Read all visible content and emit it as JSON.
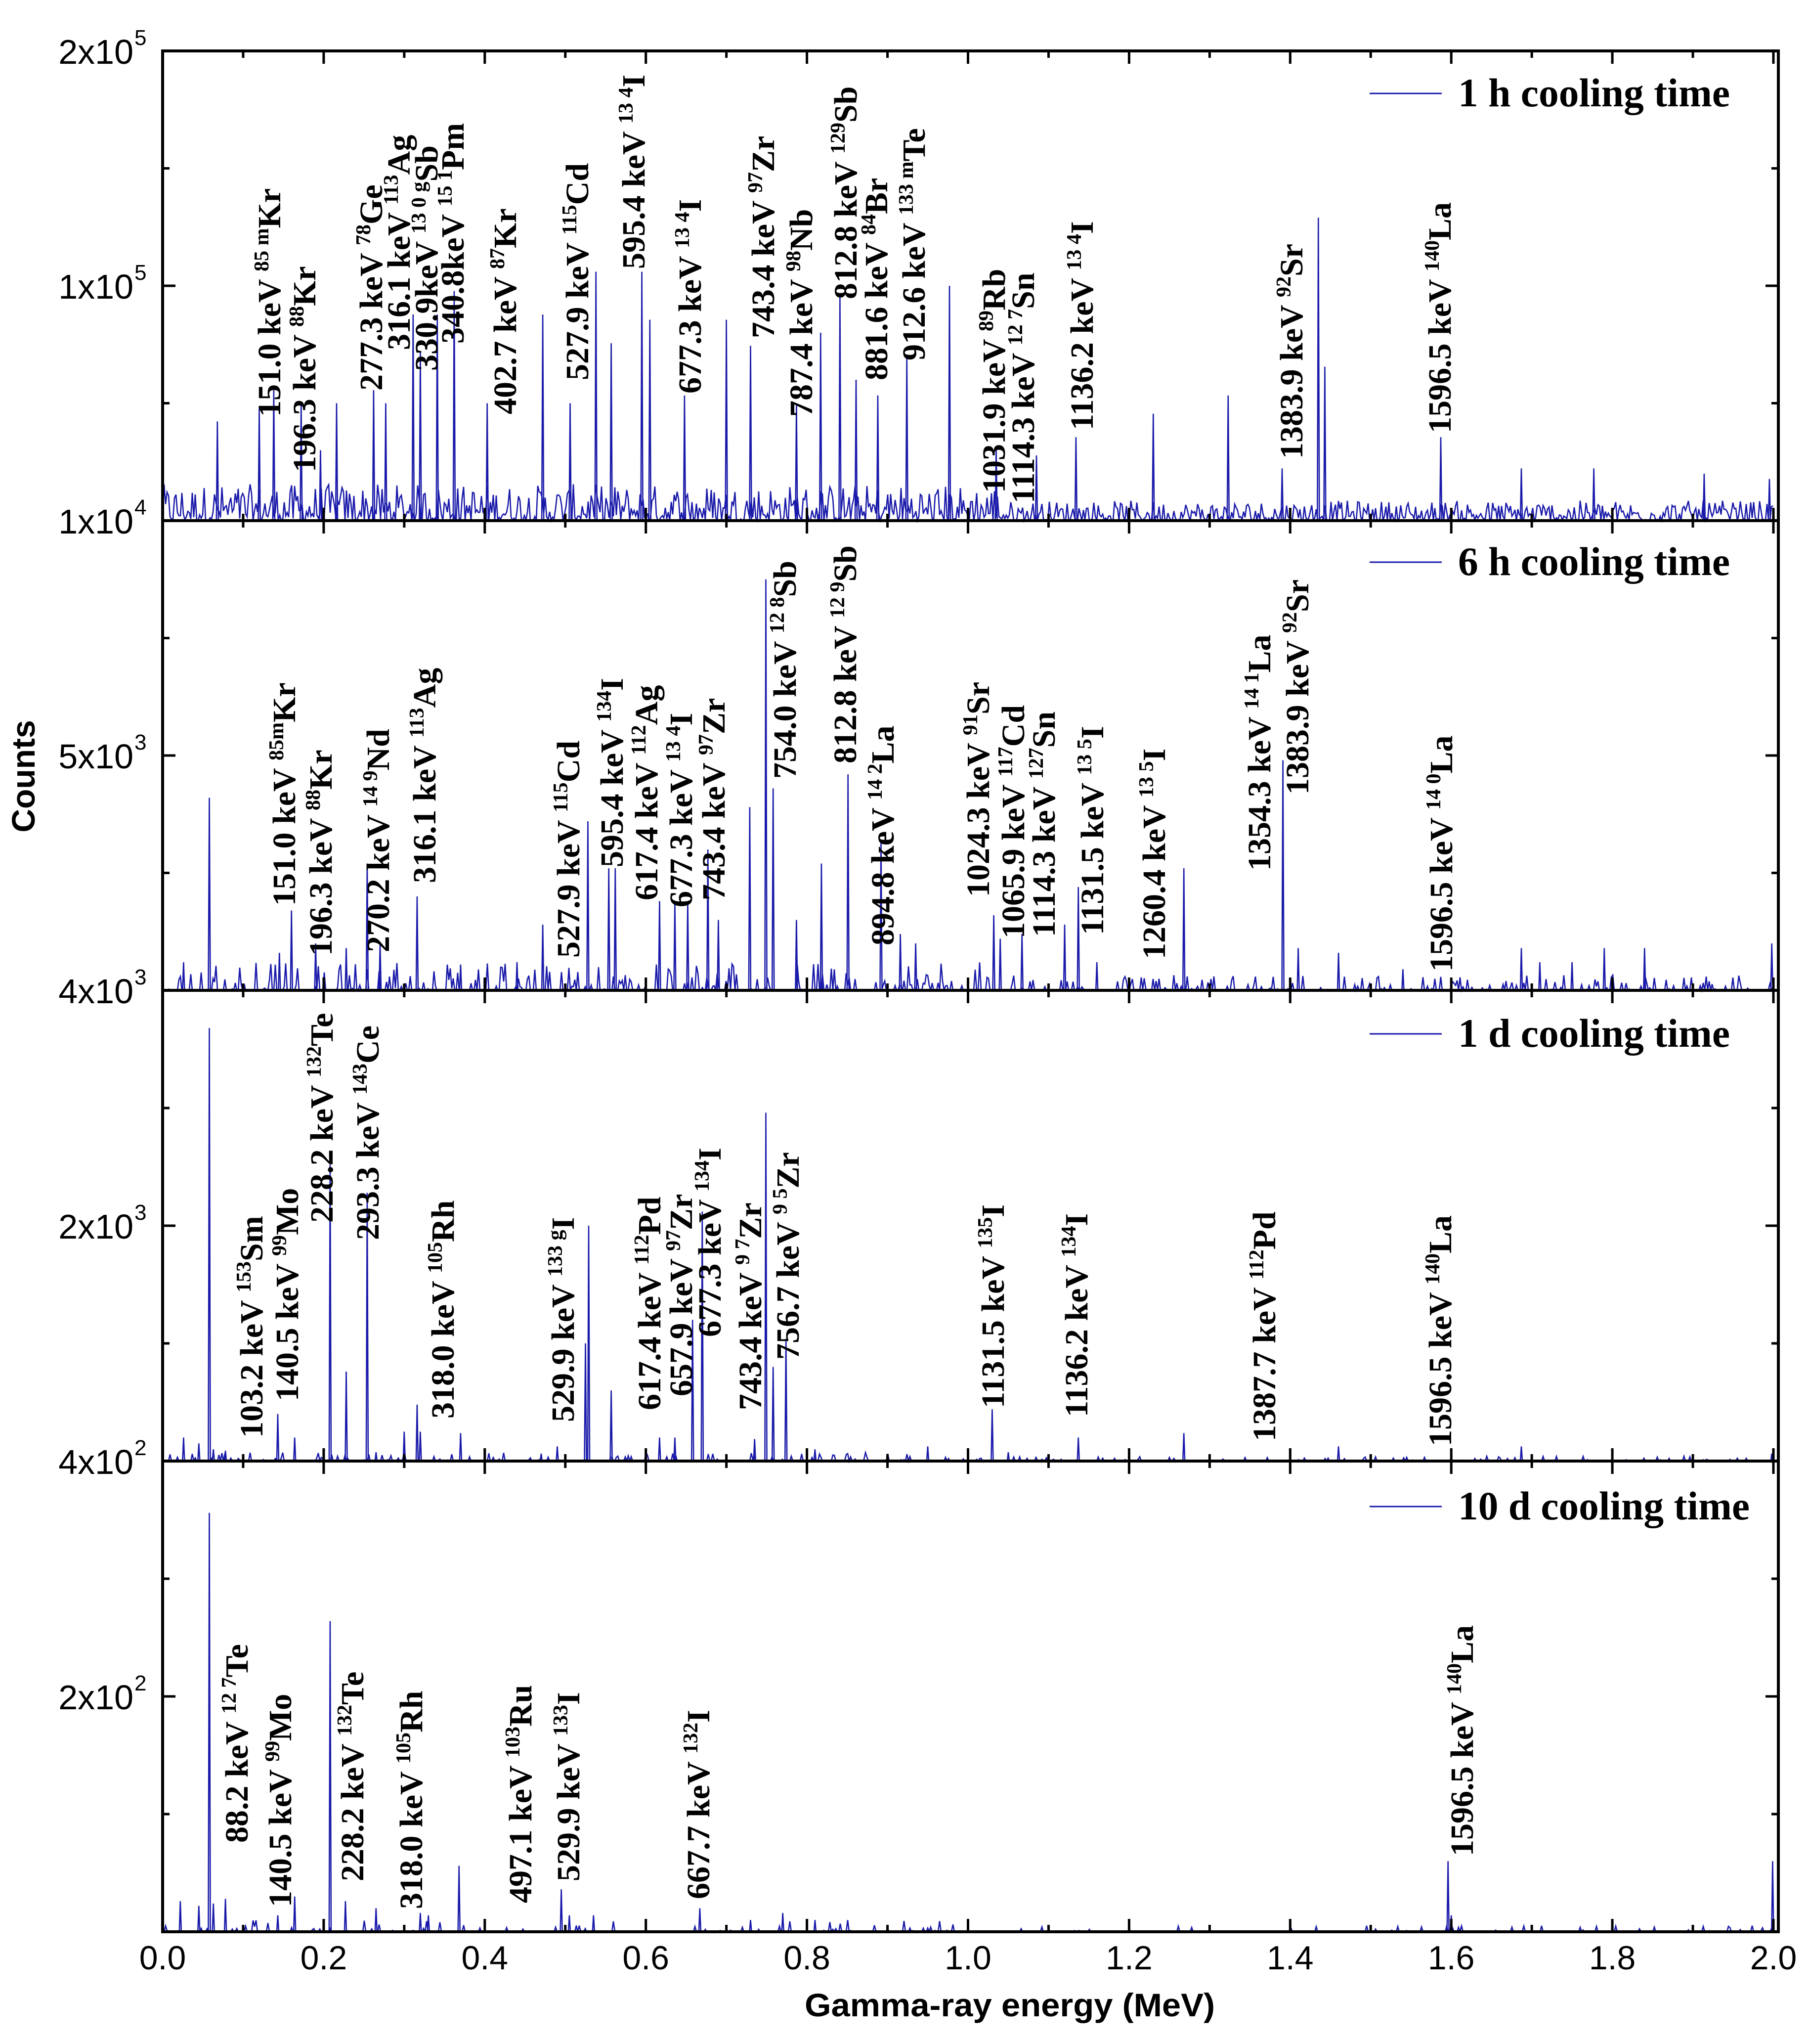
{
  "chart_data": {
    "type": "line",
    "title": "",
    "xlabel": "Gamma-ray energy (MeV)",
    "ylabel": "Counts",
    "xlim": [
      0.0,
      2.0
    ],
    "x_ticks": [
      "0.0",
      "0.2",
      "0.4",
      "0.6",
      "0.8",
      "1.0",
      "1.2",
      "1.4",
      "1.6",
      "1.8",
      "2.0"
    ],
    "x_tick_values": [
      0.0,
      0.2,
      0.4,
      0.6,
      0.8,
      1.0,
      1.2,
      1.4,
      1.6,
      1.8,
      2.0
    ],
    "grid": false,
    "legend_placement": "top-right",
    "series_color": "#1a1aaa",
    "panels": [
      {
        "name": "1 h cooling time",
        "legend": "1 h cooling time",
        "y_scale": "broken: lower half 1x10^4-1x10^5, upper half 1x10^5-2x10^5",
        "y_breaks": [
          10000,
          100000,
          200000
        ],
        "y_tick_labels": [
          {
            "value": 200000,
            "mantissa": "2x10",
            "exp": "5"
          },
          {
            "value": 100000,
            "mantissa": "1x10",
            "exp": "5"
          },
          {
            "value": 10000,
            "mantissa": "1x10",
            "exp": "4"
          }
        ],
        "noise_level": 14000,
        "noise_density": 1.0,
        "peaks": [
          [
            0.068,
            48000
          ],
          [
            0.12,
            53000
          ],
          [
            0.138,
            60000
          ],
          [
            0.172,
            55000
          ],
          [
            0.196,
            37000
          ],
          [
            0.216,
            55000
          ],
          [
            0.262,
            60000
          ],
          [
            0.277,
            55000
          ],
          [
            0.311,
            89000
          ],
          [
            0.32,
            75000
          ],
          [
            0.341,
            89000
          ],
          [
            0.362,
            98000
          ],
          [
            0.403,
            55000
          ],
          [
            0.472,
            89000
          ],
          [
            0.506,
            55000
          ],
          [
            0.538,
            106000
          ],
          [
            0.557,
            78000
          ],
          [
            0.595,
            106000
          ],
          [
            0.605,
            87000
          ],
          [
            0.648,
            58000
          ],
          [
            0.7,
            87000
          ],
          [
            0.73,
            77000
          ],
          [
            0.787,
            55000
          ],
          [
            0.817,
            82000
          ],
          [
            0.841,
            96000
          ],
          [
            0.861,
            64000
          ],
          [
            0.888,
            58000
          ],
          [
            0.924,
            73000
          ],
          [
            0.977,
            100000
          ],
          [
            1.035,
            37000
          ],
          [
            1.085,
            35000
          ],
          [
            1.134,
            42000
          ],
          [
            1.23,
            51000
          ],
          [
            1.323,
            58000
          ],
          [
            1.39,
            30000
          ],
          [
            1.435,
            129000
          ],
          [
            1.443,
            69000
          ],
          [
            1.587,
            42000
          ],
          [
            1.687,
            30000
          ],
          [
            1.777,
            30000
          ],
          [
            1.914,
            28000
          ],
          [
            1.995,
            26000
          ]
        ],
        "labels": [
          {
            "energy": "151.0 keV ",
            "mass": "85 m",
            "element": "Kr"
          },
          {
            "energy": "196.3 keV ",
            "mass": "88",
            "element": "Kr"
          },
          {
            "energy": "277.3 keV ",
            "mass": "78",
            "element": "Ge"
          },
          {
            "energy": "316.1 keV ",
            "mass": "113",
            "element": "Ag"
          },
          {
            "energy": "330.9keV ",
            "mass": "13 0 g",
            "element": "Sb"
          },
          {
            "energy": "340.8keV ",
            "mass": "15 1",
            "element": "Pm"
          },
          {
            "energy": "402.7 keV ",
            "mass": "87",
            "element": "Kr"
          },
          {
            "energy": "527.9 keV ",
            "mass": "115",
            "element": "Cd"
          },
          {
            "energy": "595.4 keV ",
            "mass": "13 4",
            "element": "I"
          },
          {
            "energy": "677.3 keV ",
            "mass": "13 4",
            "element": "I"
          },
          {
            "energy": "743.4 keV ",
            "mass": "97",
            "element": "Zr"
          },
          {
            "energy": "787.4 keV ",
            "mass": "98",
            "element": "Nb"
          },
          {
            "energy": "812.8 keV ",
            "mass": "129",
            "element": "Sb"
          },
          {
            "energy": "881.6 keV ",
            "mass": "84",
            "element": "Br"
          },
          {
            "energy": "912.6 keV ",
            "mass": "133 m",
            "element": "Te"
          },
          {
            "energy": "1031.9 keV ",
            "mass": "89",
            "element": "Rb"
          },
          {
            "energy": "1114.3 keV ",
            "mass": "12 7",
            "element": "Sn"
          },
          {
            "energy": "1136.2 keV ",
            "mass": "13 4",
            "element": "I"
          },
          {
            "energy": "1383.9 keV ",
            "mass": "92",
            "element": "Sr"
          },
          {
            "energy": "1596.5 keV ",
            "mass": "140",
            "element": "La"
          }
        ]
      },
      {
        "name": "6 h cooling time",
        "legend": "6 h cooling time",
        "y_breaks": [
          4000,
          5000,
          6000
        ],
        "y_tick_labels": [
          {
            "value": 5000,
            "mantissa": "5x10",
            "exp": "3"
          },
          {
            "value": 4000,
            "mantissa": "4x10",
            "exp": "3"
          }
        ],
        "noise_level": 120,
        "noise_density": 0.35,
        "peaks": [
          [
            0.026,
            4120
          ],
          [
            0.058,
            4820
          ],
          [
            0.145,
            4160
          ],
          [
            0.16,
            4340
          ],
          [
            0.19,
            4200
          ],
          [
            0.228,
            4180
          ],
          [
            0.254,
            4540
          ],
          [
            0.27,
            4200
          ],
          [
            0.316,
            4400
          ],
          [
            0.37,
            4110
          ],
          [
            0.44,
            4120
          ],
          [
            0.472,
            4280
          ],
          [
            0.528,
            4720
          ],
          [
            0.554,
            4520
          ],
          [
            0.562,
            4520
          ],
          [
            0.617,
            4380
          ],
          [
            0.636,
            4380
          ],
          [
            0.652,
            4380
          ],
          [
            0.677,
            4600
          ],
          [
            0.69,
            4300
          ],
          [
            0.729,
            4780
          ],
          [
            0.749,
            5750
          ],
          [
            0.758,
            4860
          ],
          [
            0.787,
            4300
          ],
          [
            0.818,
            4540
          ],
          [
            0.851,
            4920
          ],
          [
            0.892,
            4640
          ],
          [
            0.916,
            4240
          ],
          [
            0.935,
            4200
          ],
          [
            1.032,
            4320
          ],
          [
            1.04,
            4220
          ],
          [
            1.067,
            4240
          ],
          [
            1.12,
            4280
          ],
          [
            1.137,
            4440
          ],
          [
            1.16,
            4120
          ],
          [
            1.268,
            4520
          ],
          [
            1.391,
            4980
          ],
          [
            1.41,
            4180
          ],
          [
            1.46,
            4160
          ],
          [
            1.54,
            4090
          ],
          [
            1.687,
            4180
          ],
          [
            1.71,
            4120
          ],
          [
            1.75,
            4120
          ],
          [
            1.79,
            4180
          ],
          [
            1.84,
            4180
          ],
          [
            1.998,
            4200
          ]
        ],
        "labels": [
          {
            "energy": "151.0 keV ",
            "mass": "85m",
            "element": "Kr"
          },
          {
            "energy": "196.3 keV ",
            "mass": "88",
            "element": "Kr"
          },
          {
            "energy": "270.2 keV ",
            "mass": "14 9",
            "element": "Nd"
          },
          {
            "energy": "316.1 keV ",
            "mass": "113",
            "element": "Ag"
          },
          {
            "energy": "527.9 keV ",
            "mass": "115",
            "element": "Cd"
          },
          {
            "energy": "595.4 keV ",
            "mass": "134",
            "element": "I"
          },
          {
            "energy": "617.4 keV ",
            "mass": "112",
            "element": "Ag"
          },
          {
            "energy": "677.3 keV ",
            "mass": "13 4",
            "element": "I"
          },
          {
            "energy": "743.4 keV ",
            "mass": "97",
            "element": "Zr"
          },
          {
            "energy": "754.0 keV ",
            "mass": "12 8",
            "element": "Sb"
          },
          {
            "energy": "812.8 keV ",
            "mass": "12 9",
            "element": "Sb"
          },
          {
            "energy": "894.8 keV ",
            "mass": "14 2",
            "element": "La"
          },
          {
            "energy": "1024.3 keV ",
            "mass": "91",
            "element": "Sr"
          },
          {
            "energy": "1065.9 keV ",
            "mass": "117",
            "element": "Cd"
          },
          {
            "energy": "1114.3 keV ",
            "mass": "127",
            "element": "Sn"
          },
          {
            "energy": "1131.5 keV ",
            "mass": "13 5",
            "element": "I"
          },
          {
            "energy": "1260.4 keV ",
            "mass": "13 5",
            "element": "I"
          },
          {
            "energy": "1354.3 keV ",
            "mass": "14 1",
            "element": "La"
          },
          {
            "energy": "1383.9 keV ",
            "mass": "92",
            "element": "Sr"
          },
          {
            "energy": "1596.5 keV ",
            "mass": "14 0",
            "element": "La"
          }
        ]
      },
      {
        "name": "1 d cooling time",
        "legend": "1 d cooling time",
        "y_breaks": [
          400,
          2000,
          3600
        ],
        "y_tick_labels": [
          {
            "value": 2000,
            "mantissa": "2x10",
            "exp": "3"
          },
          {
            "value": 400,
            "mantissa": "4x10",
            "exp": "2"
          }
        ],
        "noise_level": 60,
        "noise_density": 0.2,
        "peaks": [
          [
            0.026,
            560
          ],
          [
            0.045,
            520
          ],
          [
            0.058,
            3344
          ],
          [
            0.063,
            480
          ],
          [
            0.078,
            470
          ],
          [
            0.143,
            720
          ],
          [
            0.164,
            560
          ],
          [
            0.208,
            2416
          ],
          [
            0.228,
            1008
          ],
          [
            0.254,
            2224
          ],
          [
            0.265,
            460
          ],
          [
            0.3,
            600
          ],
          [
            0.316,
            784
          ],
          [
            0.32,
            600
          ],
          [
            0.37,
            590
          ],
          [
            0.47,
            450
          ],
          [
            0.49,
            500
          ],
          [
            0.525,
            1200
          ],
          [
            0.529,
            2000
          ],
          [
            0.557,
            880
          ],
          [
            0.617,
            560
          ],
          [
            0.636,
            560
          ],
          [
            0.658,
            1360
          ],
          [
            0.67,
            2096
          ],
          [
            0.735,
            550
          ],
          [
            0.749,
            2768
          ],
          [
            0.758,
            1040
          ],
          [
            0.774,
            1232
          ],
          [
            0.81,
            480
          ],
          [
            0.95,
            500
          ],
          [
            1.03,
            752
          ],
          [
            1.05,
            460
          ],
          [
            1.137,
            560
          ],
          [
            1.268,
            590
          ],
          [
            1.46,
            500
          ],
          [
            1.687,
            500
          ],
          [
            1.998,
            450
          ]
        ],
        "labels": [
          {
            "energy": "103.2 keV ",
            "mass": "153",
            "element": "Sm"
          },
          {
            "energy": "140.5 keV ",
            "mass": "99",
            "element": "Mo"
          },
          {
            "energy": "228.2 keV ",
            "mass": "132",
            "element": "Te"
          },
          {
            "energy": "293.3 keV ",
            "mass": "143",
            "element": "Ce"
          },
          {
            "energy": "318.0 keV ",
            "mass": "105",
            "element": "Rh"
          },
          {
            "energy": "529.9 keV ",
            "mass": "133 g",
            "element": "I"
          },
          {
            "energy": "617.4 keV ",
            "mass": "112",
            "element": "Pd"
          },
          {
            "energy": "657.9 keV ",
            "mass": "97",
            "element": "Zr"
          },
          {
            "energy": "677.3 keV ",
            "mass": "134",
            "element": "I"
          },
          {
            "energy": "743.4 keV ",
            "mass": "9 7",
            "element": "Zr"
          },
          {
            "energy": "756.7 keV ",
            "mass": "9 5",
            "element": "Zr"
          },
          {
            "energy": "1131.5 keV ",
            "mass": "135",
            "element": "I"
          },
          {
            "energy": "1136.2 keV ",
            "mass": "134",
            "element": "I"
          },
          {
            "energy": "1387.7 keV ",
            "mass": "112",
            "element": "Pd"
          },
          {
            "energy": "1596.5 keV ",
            "mass": "140",
            "element": "La"
          }
        ]
      },
      {
        "name": "10 d cooling time",
        "legend": "10 d cooling time",
        "y_breaks": [
          0,
          200,
          400
        ],
        "y_tick_labels": [
          {
            "value": 200,
            "mantissa": "2x10",
            "exp": "2"
          }
        ],
        "noise_level": 10,
        "noise_density": 0.12,
        "peaks": [
          [
            0.022,
            26
          ],
          [
            0.045,
            22
          ],
          [
            0.058,
            356
          ],
          [
            0.063,
            24
          ],
          [
            0.078,
            28
          ],
          [
            0.143,
            14
          ],
          [
            0.164,
            30
          ],
          [
            0.208,
            264
          ],
          [
            0.227,
            26
          ],
          [
            0.265,
            20
          ],
          [
            0.32,
            16
          ],
          [
            0.33,
            14
          ],
          [
            0.368,
            56
          ],
          [
            0.495,
            36
          ],
          [
            0.505,
            14
          ],
          [
            0.535,
            14
          ],
          [
            0.667,
            20
          ],
          [
            0.73,
            10
          ],
          [
            0.77,
            16
          ],
          [
            0.81,
            10
          ],
          [
            1.596,
            60
          ],
          [
            1.6,
            14
          ],
          [
            1.999,
            60
          ]
        ],
        "labels": [
          {
            "energy": "88.2 keV ",
            "mass": "12 7",
            "element": "Te"
          },
          {
            "energy": "140.5 keV ",
            "mass": "99",
            "element": "Mo"
          },
          {
            "energy": "228.2 keV ",
            "mass": "132",
            "element": "Te"
          },
          {
            "energy": "318.0 keV ",
            "mass": "105",
            "element": "Rh"
          },
          {
            "energy": "497.1 keV ",
            "mass": "103",
            "element": "Ru"
          },
          {
            "energy": "529.9 keV ",
            "mass": "133",
            "element": "I"
          },
          {
            "energy": "667.7 keV ",
            "mass": "132",
            "element": "I"
          },
          {
            "energy": "1596.5 keV ",
            "mass": "140",
            "element": "La"
          }
        ]
      }
    ]
  }
}
